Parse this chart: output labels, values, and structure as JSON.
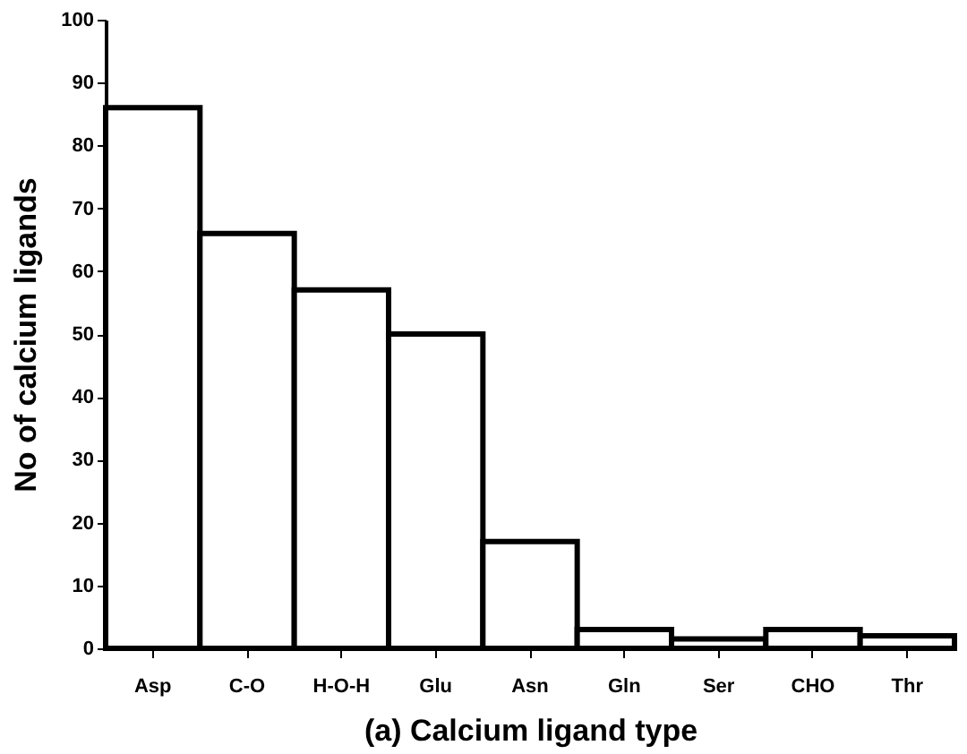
{
  "chart_data": {
    "type": "bar",
    "xlabel": "(a) Calcium ligand type",
    "ylabel": "No of calcium ligands",
    "categories": [
      "Asp",
      "C-O",
      "H-O-H",
      "Glu",
      "Asn",
      "Gln",
      "Ser",
      "CHO",
      "Thr"
    ],
    "values": [
      86,
      66,
      57,
      50,
      17,
      3,
      1.5,
      3,
      2
    ],
    "color": "#ffffff",
    "ylim": [
      0,
      100
    ],
    "yticks": [
      0,
      10,
      20,
      30,
      40,
      50,
      60,
      70,
      80,
      90,
      100
    ],
    "grid": false
  }
}
